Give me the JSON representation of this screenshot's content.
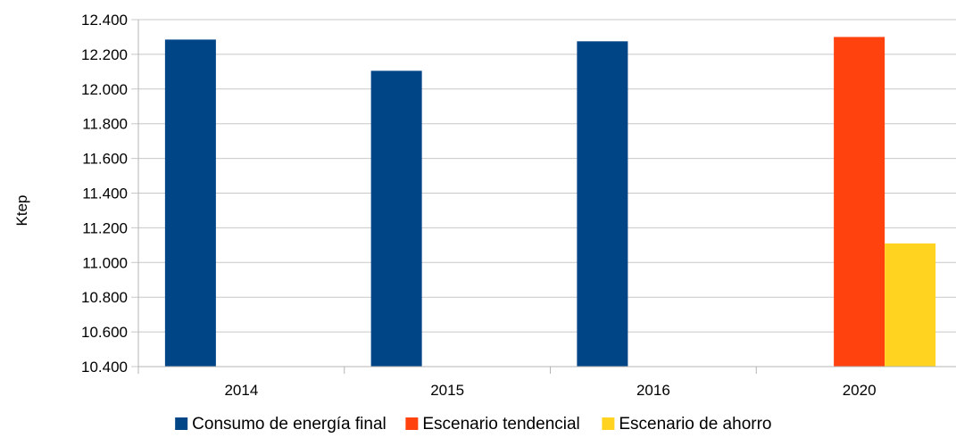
{
  "chart_data": {
    "type": "bar",
    "title": "",
    "xlabel": "",
    "ylabel": "Ktep",
    "ylim": [
      10400,
      12400
    ],
    "ytick_step": 200,
    "ytick_labels": [
      "10.400",
      "10.600",
      "10.800",
      "11.000",
      "11.200",
      "11.400",
      "11.600",
      "11.800",
      "12.000",
      "12.200",
      "12.400"
    ],
    "categories": [
      "2014",
      "2015",
      "2016",
      "2020"
    ],
    "series": [
      {
        "name": "Consumo de energía final",
        "color": "#004586",
        "values": [
          12285,
          12105,
          12275,
          null
        ]
      },
      {
        "name": "Escenario tendencial",
        "color": "#ff420e",
        "values": [
          null,
          null,
          null,
          12300
        ]
      },
      {
        "name": "Escenario de ahorro",
        "color": "#ffd320",
        "values": [
          null,
          null,
          null,
          11110
        ]
      }
    ],
    "grid": true,
    "legend_position": "bottom"
  }
}
